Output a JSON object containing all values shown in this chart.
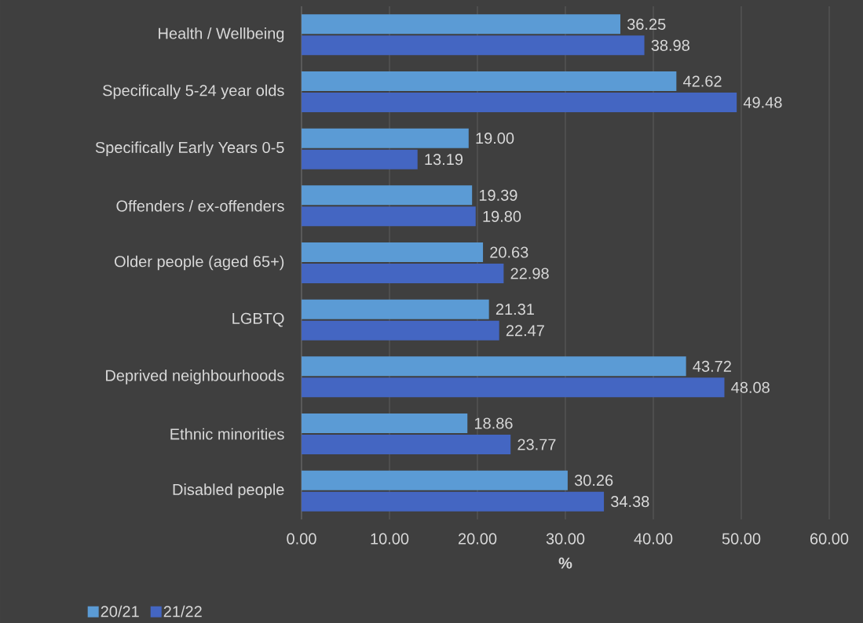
{
  "chart_data": {
    "type": "bar",
    "orientation": "horizontal",
    "xlabel": "%",
    "categories": [
      "Health / Wellbeing",
      "Specifically 5-24 year olds",
      "Specifically Early Years 0-5",
      "Offenders / ex-offenders",
      "Older people (aged 65+)",
      "LGBTQ",
      "Deprived neighbourhoods",
      "Ethnic minorities",
      "Disabled people"
    ],
    "series": [
      {
        "name": "20/21",
        "color": "#5b9bd5",
        "values": [
          36.25,
          42.62,
          19.0,
          19.39,
          20.63,
          21.31,
          43.72,
          18.86,
          30.26
        ],
        "value_labels": [
          "36.25",
          "42.62",
          "19.00",
          "19.39",
          "20.63",
          "21.31",
          "43.72",
          "18.86",
          "30.26"
        ]
      },
      {
        "name": "21/22",
        "color": "#4466c2",
        "values": [
          38.98,
          49.48,
          13.19,
          19.8,
          22.98,
          22.47,
          48.08,
          23.77,
          34.38
        ],
        "value_labels": [
          "38.98",
          "49.48",
          "13.19",
          "19.80",
          "22.98",
          "22.47",
          "48.08",
          "23.77",
          "34.38"
        ]
      }
    ],
    "xlim": [
      0,
      60
    ],
    "xticks": [
      {
        "value": 0,
        "label": "0.00"
      },
      {
        "value": 10,
        "label": "10.00"
      },
      {
        "value": 20,
        "label": "20.00"
      },
      {
        "value": 30,
        "label": "30.00"
      },
      {
        "value": 40,
        "label": "40.00"
      },
      {
        "value": 50,
        "label": "50.00"
      },
      {
        "value": 60,
        "label": "60.00"
      }
    ],
    "grid": "x",
    "legend": "bottom left"
  }
}
